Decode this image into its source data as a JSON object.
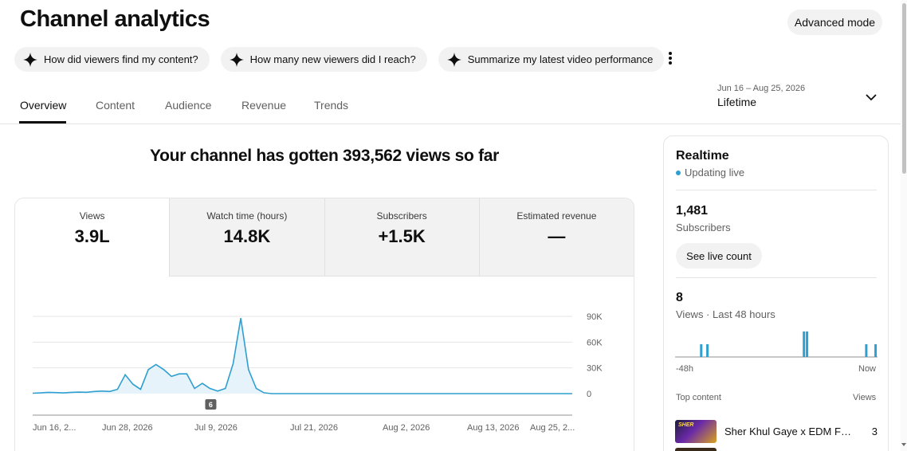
{
  "header": {
    "title": "Channel analytics",
    "advanced_mode_label": "Advanced mode"
  },
  "chips": [
    {
      "label": "How did viewers find my content?"
    },
    {
      "label": "How many new viewers did I reach?"
    },
    {
      "label": "Summarize my latest video performance"
    }
  ],
  "tabs": [
    {
      "label": "Overview",
      "active": true
    },
    {
      "label": "Content"
    },
    {
      "label": "Audience"
    },
    {
      "label": "Revenue"
    },
    {
      "label": "Trends"
    }
  ],
  "date_picker": {
    "range": "Jun 16 – Aug 25, 2026",
    "label": "Lifetime"
  },
  "headline": "Your channel has gotten 393,562 views so far",
  "metrics": [
    {
      "label": "Views",
      "value": "3.9L"
    },
    {
      "label": "Watch time (hours)",
      "value": "14.8K"
    },
    {
      "label": "Subscribers",
      "value": "+1.5K"
    },
    {
      "label": "Estimated revenue",
      "value": "—"
    }
  ],
  "chart_data": {
    "type": "area",
    "x_tick_labels": [
      "Jun 16, 2...",
      "Jun 28, 2026",
      "Jul 9, 2026",
      "Jul 21, 2026",
      "Aug 2, 2026",
      "Aug 13, 2026",
      "Aug 25, 2..."
    ],
    "y_tick_labels": [
      "90K",
      "60K",
      "30K",
      "0"
    ],
    "ylim": [
      0,
      90000
    ],
    "start_date": "Jun 16, 2026",
    "end_date": "Aug 25, 2026",
    "marker": {
      "date": "Jul 9, 2026",
      "label": "6"
    },
    "series": [
      {
        "values": [
          500,
          800,
          1500,
          1200,
          800,
          1500,
          1800,
          1600,
          2500,
          3000,
          2500,
          5000,
          22000,
          11000,
          5000,
          28000,
          34000,
          28000,
          20000,
          23000,
          23000,
          6000,
          12000,
          6000,
          3000,
          6000,
          35000,
          88000,
          28000,
          6000,
          1000,
          0,
          0,
          0,
          0,
          0,
          0,
          0,
          0,
          0,
          0,
          0,
          0,
          0,
          0,
          0,
          0,
          0,
          0,
          0,
          0,
          0,
          0,
          0,
          0,
          0,
          0,
          0,
          0,
          0,
          0,
          0,
          0,
          0,
          0,
          0,
          0,
          0,
          0,
          0,
          0
        ]
      }
    ],
    "color": "#2f9fd0"
  },
  "realtime": {
    "title": "Realtime",
    "status": "Updating live",
    "subscribers_value": "1,481",
    "subscribers_label": "Subscribers",
    "live_count_label": "See live count",
    "views_value": "8",
    "views_label": "Views · Last 48 hours",
    "axis_left": "-48h",
    "axis_right": "Now",
    "bars": [
      0,
      0,
      0,
      0,
      0,
      0,
      0,
      0,
      1,
      0,
      1,
      0,
      0,
      0,
      0,
      0,
      0,
      0,
      0,
      0,
      0,
      0,
      0,
      0,
      0,
      0,
      0,
      0,
      0,
      0,
      0,
      0,
      0,
      0,
      0,
      0,
      0,
      0,
      0,
      0,
      0,
      2,
      2,
      0,
      0,
      0,
      0,
      0,
      0,
      0,
      0,
      0,
      0,
      0,
      0,
      0,
      0,
      0,
      0,
      0,
      0,
      1,
      0,
      0,
      1
    ],
    "top_content_label": "Top content",
    "top_views_label": "Views",
    "videos": [
      {
        "title": "Sher Khul Gaye x EDM Fest...",
        "views": "3",
        "thumb_text": "SHER"
      }
    ]
  }
}
